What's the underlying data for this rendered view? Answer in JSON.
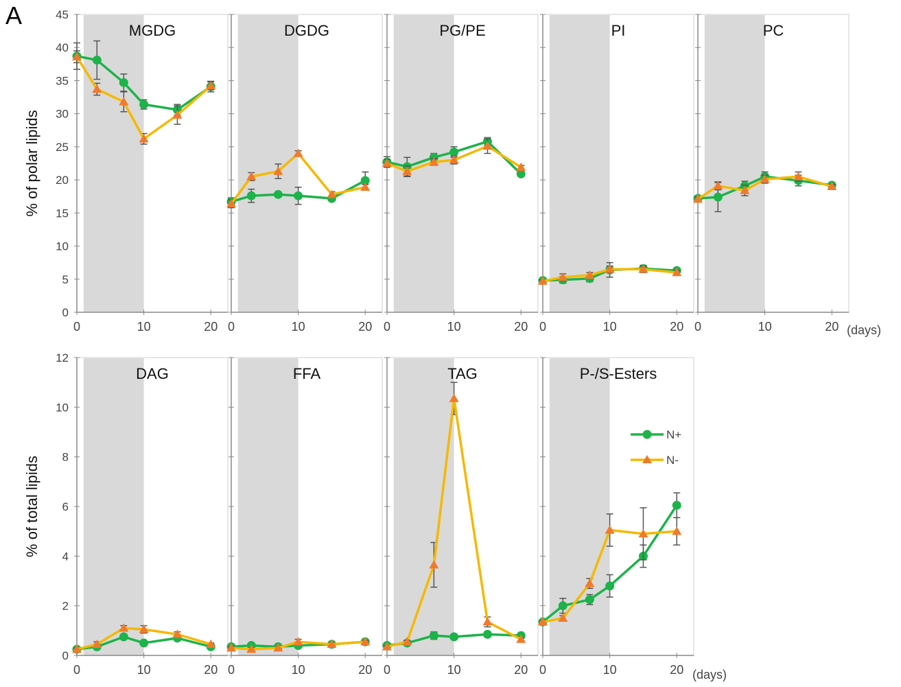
{
  "figure": {
    "panel_letter": "A",
    "days_label": "(days)",
    "top_ylabel": "% of polar lipids",
    "bottom_ylabel": "% of total lipids",
    "colors": {
      "n_plus": "#1db34a",
      "n_minus": "#f5b800",
      "n_minus_marker": "#f07a2c",
      "shade": "#d9d9d9",
      "errorbar": "#555555"
    },
    "legend": [
      "N+",
      "N-"
    ]
  },
  "chart_data": [
    {
      "type": "line",
      "title": "MGDG",
      "row": "top",
      "x": [
        0,
        3,
        7,
        10,
        15,
        20
      ],
      "xlim": [
        0,
        21
      ],
      "ylim": [
        0,
        45
      ],
      "xticks": [
        "0",
        "10",
        "20"
      ],
      "yticks": [
        "0",
        "5",
        "10",
        "15",
        "20",
        "25",
        "30",
        "35",
        "40",
        "45"
      ],
      "ylabel": "% of polar lipids",
      "dark_period": [
        1,
        10
      ],
      "series": [
        {
          "name": "N+",
          "values": [
            38.7,
            38.1,
            34.7,
            31.4,
            30.6,
            34.1
          ],
          "errors": [
            2.0,
            2.9,
            1.3,
            0.7,
            0.8,
            0.8
          ]
        },
        {
          "name": "N-",
          "values": [
            38.6,
            33.7,
            31.8,
            26.2,
            29.8,
            34.2
          ],
          "errors": [
            0.9,
            0.9,
            1.5,
            0.8,
            1.4,
            0.6
          ]
        }
      ]
    },
    {
      "type": "line",
      "title": "DGDG",
      "row": "top",
      "x": [
        0,
        3,
        7,
        10,
        15,
        20
      ],
      "xlim": [
        0,
        21
      ],
      "ylim": [
        0,
        45
      ],
      "xticks": [
        "0",
        "10",
        "20"
      ],
      "dark_period": [
        1,
        10
      ],
      "series": [
        {
          "name": "N+",
          "values": [
            16.7,
            17.6,
            17.8,
            17.6,
            17.2,
            19.9
          ],
          "errors": [
            0.6,
            1.0,
            0.3,
            1.3,
            0.3,
            1.3
          ]
        },
        {
          "name": "N-",
          "values": [
            16.4,
            20.5,
            21.3,
            24.0,
            17.8,
            18.9
          ],
          "errors": [
            0.6,
            0.6,
            1.1,
            0.4,
            0.4,
            0.4
          ]
        }
      ]
    },
    {
      "type": "line",
      "title": "PG/PE",
      "row": "top",
      "x": [
        0,
        3,
        7,
        10,
        15,
        20
      ],
      "xlim": [
        0,
        21
      ],
      "ylim": [
        0,
        45
      ],
      "xticks": [
        "0",
        "10",
        "20"
      ],
      "dark_period": [
        1,
        10
      ],
      "series": [
        {
          "name": "N+",
          "values": [
            22.7,
            22.0,
            23.4,
            24.2,
            25.8,
            20.9
          ],
          "errors": [
            0.8,
            1.4,
            0.6,
            0.8,
            0.6,
            0.2
          ]
        },
        {
          "name": "N-",
          "values": [
            22.5,
            21.3,
            22.7,
            23.0,
            25.1,
            21.9
          ],
          "errors": [
            0.6,
            0.8,
            0.5,
            0.6,
            1.1,
            0.3
          ]
        }
      ]
    },
    {
      "type": "line",
      "title": "PI",
      "row": "top",
      "x": [
        0,
        3,
        7,
        10,
        15,
        20
      ],
      "xlim": [
        0,
        21
      ],
      "ylim": [
        0,
        45
      ],
      "xticks": [
        "0",
        "10",
        "20"
      ],
      "dark_period": [
        1,
        10
      ],
      "series": [
        {
          "name": "N+",
          "values": [
            4.8,
            4.9,
            5.1,
            6.4,
            6.6,
            6.3
          ],
          "errors": [
            0.2,
            0.5,
            0.5,
            1.1,
            0.5,
            0.3
          ]
        },
        {
          "name": "N-",
          "values": [
            4.7,
            5.3,
            5.6,
            6.5,
            6.5,
            6.0
          ],
          "errors": [
            0.2,
            0.5,
            0.4,
            0.5,
            0.5,
            0.3
          ]
        }
      ]
    },
    {
      "type": "line",
      "title": "PC",
      "row": "top",
      "x": [
        0,
        3,
        7,
        10,
        15,
        20
      ],
      "xlim": [
        0,
        21
      ],
      "ylim": [
        0,
        45
      ],
      "xticks": [
        "0",
        "10",
        "20"
      ],
      "dark_period": [
        1,
        10
      ],
      "series": [
        {
          "name": "N+",
          "values": [
            17.2,
            17.4,
            19.1,
            20.5,
            19.9,
            19.2
          ],
          "errors": [
            0.3,
            2.2,
            0.7,
            0.7,
            0.8,
            0.3
          ]
        },
        {
          "name": "N-",
          "values": [
            17.1,
            19.1,
            18.4,
            20.1,
            20.5,
            19.0
          ],
          "errors": [
            0.3,
            0.6,
            0.8,
            0.6,
            0.7,
            0.3
          ]
        }
      ]
    },
    {
      "type": "line",
      "title": "DAG",
      "row": "bottom",
      "x": [
        0,
        3,
        7,
        10,
        15,
        20
      ],
      "xlim": [
        0,
        21
      ],
      "ylim": [
        0,
        12
      ],
      "xticks": [
        "0",
        "10",
        "20"
      ],
      "yticks": [
        "0",
        "2",
        "4",
        "6",
        "8",
        "10",
        "12"
      ],
      "ylabel": "% of total lipids",
      "dark_period": [
        1,
        10
      ],
      "series": [
        {
          "name": "N+",
          "values": [
            0.25,
            0.35,
            0.75,
            0.5,
            0.7,
            0.35
          ],
          "errors": [
            0.05,
            0.1,
            0.1,
            0.1,
            0.1,
            0.05
          ]
        },
        {
          "name": "N-",
          "values": [
            0.25,
            0.45,
            1.1,
            1.05,
            0.85,
            0.45
          ],
          "errors": [
            0.05,
            0.1,
            0.1,
            0.15,
            0.1,
            0.05
          ]
        }
      ]
    },
    {
      "type": "line",
      "title": "FFA",
      "row": "bottom",
      "x": [
        0,
        3,
        7,
        10,
        15,
        20
      ],
      "xlim": [
        0,
        21
      ],
      "ylim": [
        0,
        12
      ],
      "xticks": [
        "0",
        "10",
        "20"
      ],
      "dark_period": [
        1,
        10
      ],
      "series": [
        {
          "name": "N+",
          "values": [
            0.35,
            0.4,
            0.35,
            0.4,
            0.45,
            0.55
          ],
          "errors": [
            0.05,
            0.05,
            0.05,
            0.1,
            0.05,
            0.05
          ]
        },
        {
          "name": "N-",
          "values": [
            0.3,
            0.25,
            0.3,
            0.55,
            0.45,
            0.55
          ],
          "errors": [
            0.05,
            0.05,
            0.05,
            0.1,
            0.05,
            0.05
          ]
        }
      ]
    },
    {
      "type": "line",
      "title": "TAG",
      "row": "bottom",
      "x": [
        0,
        3,
        7,
        10,
        15,
        20
      ],
      "xlim": [
        0,
        21
      ],
      "ylim": [
        0,
        12
      ],
      "xticks": [
        "0",
        "10",
        "20"
      ],
      "dark_period": [
        1,
        10
      ],
      "series": [
        {
          "name": "N+",
          "values": [
            0.4,
            0.5,
            0.8,
            0.75,
            0.85,
            0.8
          ],
          "errors": [
            0.05,
            0.05,
            0.15,
            0.1,
            0.05,
            0.05
          ]
        },
        {
          "name": "N-",
          "values": [
            0.35,
            0.55,
            3.65,
            10.35,
            1.35,
            0.65
          ],
          "errors": [
            0.05,
            0.05,
            0.9,
            0.65,
            0.2,
            0.05
          ]
        }
      ]
    },
    {
      "type": "line",
      "title": "P-/S-Esters",
      "row": "bottom",
      "x": [
        0,
        3,
        7,
        10,
        15,
        20
      ],
      "xlim": [
        0,
        21
      ],
      "ylim": [
        0,
        12
      ],
      "xticks": [
        "0",
        "10",
        "20"
      ],
      "dark_period": [
        1,
        10
      ],
      "legend": [
        "N+",
        "N-"
      ],
      "legend_position": "right-middle",
      "series": [
        {
          "name": "N+",
          "values": [
            1.35,
            2.0,
            2.25,
            2.8,
            4.0,
            6.05
          ],
          "errors": [
            0.05,
            0.3,
            0.2,
            0.45,
            0.45,
            0.5
          ]
        },
        {
          "name": "N-",
          "values": [
            1.35,
            1.5,
            2.9,
            5.05,
            4.9,
            5.0
          ],
          "errors": [
            0.05,
            0.1,
            0.2,
            0.65,
            1.05,
            0.55
          ]
        }
      ]
    }
  ]
}
